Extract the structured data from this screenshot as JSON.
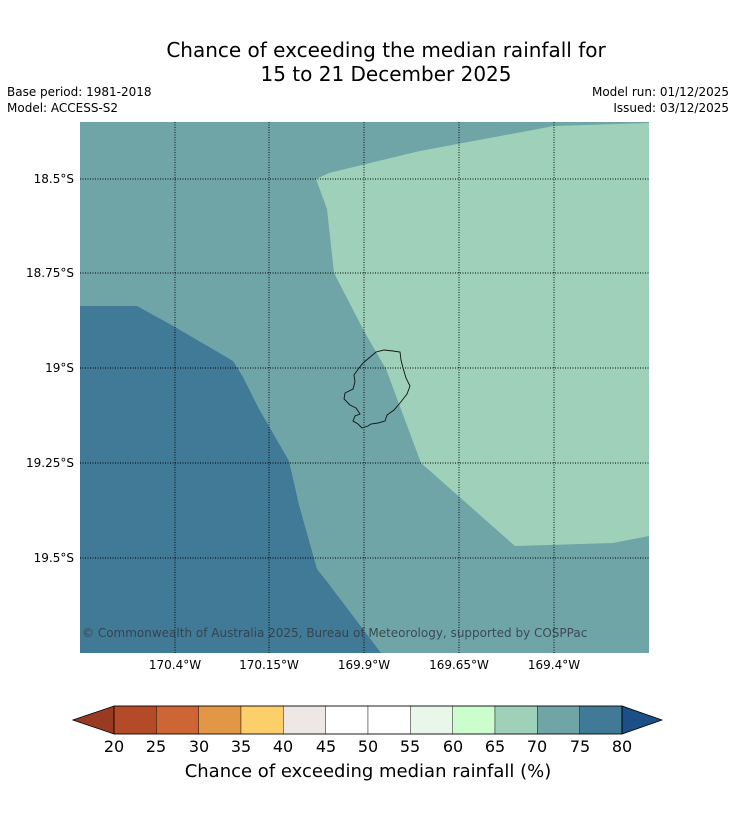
{
  "title": {
    "line1": "Chance of exceeding the median rainfall for",
    "line2": "15 to 21 December 2025"
  },
  "meta": {
    "base_period": "Base period: 1981-2018",
    "model": "Model: ACCESS-S2",
    "model_run": "Model run: 01/12/2025",
    "issued": "Issued: 03/12/2025"
  },
  "map": {
    "lat_labels": [
      "18.5°S",
      "18.75°S",
      "19°S",
      "19.25°S",
      "19.5°S"
    ],
    "lon_labels": [
      "170.4°W",
      "170.15°W",
      "169.9°W",
      "169.65°W",
      "169.4°W"
    ],
    "copyright": "© Commonwealth of Australia 2025, Bureau of Meteorology, supported by COSPPac",
    "zones": [
      {
        "category": "70-75",
        "color": "#6fa5a7"
      },
      {
        "category": "65-70",
        "color": "#9fd1ba"
      },
      {
        "category": "75-80",
        "color": "#417a97"
      }
    ],
    "coastline_color": "#111111"
  },
  "colorbar": {
    "label": "Chance of exceeding median rainfall (%)",
    "ticks": [
      "20",
      "25",
      "30",
      "35",
      "40",
      "45",
      "50",
      "55",
      "60",
      "65",
      "70",
      "75",
      "80"
    ],
    "under_color": "#9b3a22",
    "over_color": "#1b4f86",
    "colors": [
      "#b34a28",
      "#cd6534",
      "#e29747",
      "#fdcf6b",
      "#ede8e5",
      "#ffffff",
      "#ffffff",
      "#e9f6ea",
      "#ccfdcc",
      "#9fd1ba",
      "#6fa5a7",
      "#417a97"
    ]
  }
}
